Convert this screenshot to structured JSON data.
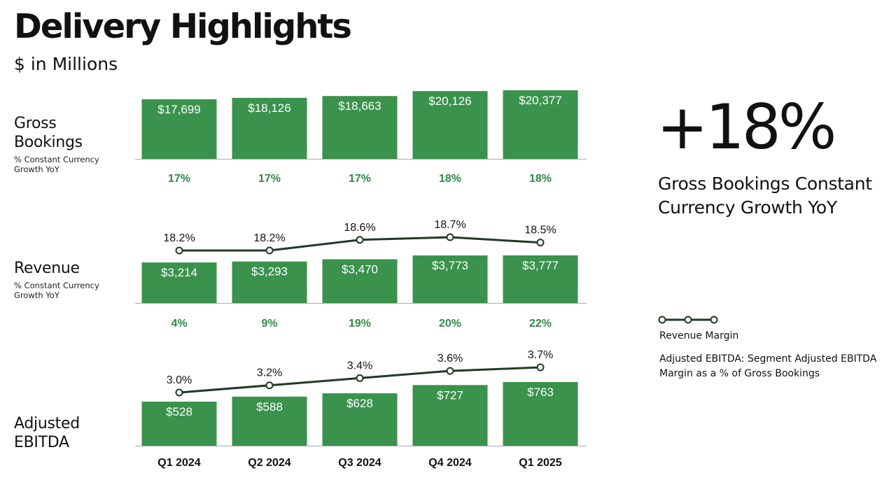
{
  "title": "Delivery Highlights",
  "subtitle": "$ in Millions",
  "rows": {
    "gross_bookings": {
      "name_line1": "Gross",
      "name_line2": "Bookings",
      "sub_line1": "% Constant Currency",
      "sub_line2": "Growth YoY"
    },
    "revenue": {
      "name_line1": "Revenue",
      "sub_line1": "% Constant Currency",
      "sub_line2": "Growth YoY"
    },
    "ebitda": {
      "name_line1": "Adjusted",
      "name_line2": "EBITDA"
    }
  },
  "highlight": {
    "value": "+18%",
    "caption": "Gross Bookings Constant Currency Growth YoY"
  },
  "legend": {
    "line_label": "Revenue Margin"
  },
  "footnote": "Adjusted EBITDA: Segment Adjusted EBITDA Margin as a % of Gross Bookings",
  "colors": {
    "bar": "#3a924d",
    "growth_text": "#2f8a45",
    "margin_line": "#1f3a24"
  },
  "chart_data": [
    {
      "type": "bar",
      "name": "Gross Bookings",
      "categories": [
        "Q1 2024",
        "Q2 2024",
        "Q3 2024",
        "Q4 2024",
        "Q1 2025"
      ],
      "values": [
        17699,
        18126,
        18663,
        20126,
        20377
      ],
      "value_labels": [
        "$17,699",
        "$18,126",
        "$18,663",
        "$20,126",
        "$20,377"
      ],
      "growth_labels": [
        "17%",
        "17%",
        "17%",
        "18%",
        "18%"
      ]
    },
    {
      "type": "bar",
      "name": "Revenue",
      "categories": [
        "Q1 2024",
        "Q2 2024",
        "Q3 2024",
        "Q4 2024",
        "Q1 2025"
      ],
      "values": [
        3214,
        3293,
        3470,
        3773,
        3777
      ],
      "value_labels": [
        "$3,214",
        "$3,293",
        "$3,470",
        "$3,773",
        "$3,777"
      ],
      "growth_labels": [
        "4%",
        "9%",
        "19%",
        "20%",
        "22%"
      ],
      "line": {
        "name": "Revenue Margin",
        "values": [
          18.2,
          18.2,
          18.6,
          18.7,
          18.5
        ],
        "labels": [
          "18.2%",
          "18.2%",
          "18.6%",
          "18.7%",
          "18.5%"
        ]
      }
    },
    {
      "type": "bar",
      "name": "Adjusted EBITDA",
      "categories": [
        "Q1 2024",
        "Q2 2024",
        "Q3 2024",
        "Q4 2024",
        "Q1 2025"
      ],
      "values": [
        528,
        588,
        628,
        727,
        763
      ],
      "value_labels": [
        "$528",
        "$588",
        "$628",
        "$727",
        "$763"
      ],
      "line": {
        "name": "Adjusted EBITDA Margin",
        "values": [
          3.0,
          3.2,
          3.4,
          3.6,
          3.7
        ],
        "labels": [
          "3.0%",
          "3.2%",
          "3.4%",
          "3.6%",
          "3.7%"
        ]
      }
    }
  ]
}
